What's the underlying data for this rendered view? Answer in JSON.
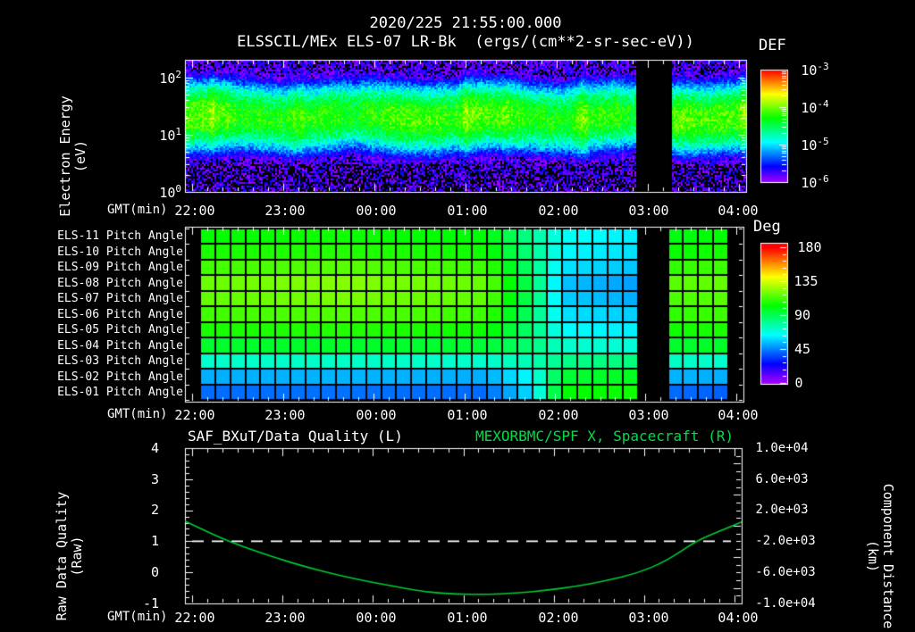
{
  "window": {
    "background": "#000000"
  },
  "title": {
    "line1": "2020/225 21:55:00.000",
    "line2": "ELSSCIL/MEx ELS-07 LR-Bk  (ergs/(cm**2-sr-sec-eV))"
  },
  "colors": {
    "text": "#ffffff",
    "title_right_green": "#00dd44",
    "curve_green": "#00cc33",
    "background": "#000000"
  },
  "axes_common": {
    "xlabel": "GMT(min)",
    "xticks": [
      "22:00",
      "23:00",
      "00:00",
      "01:00",
      "02:00",
      "03:00",
      "04:00"
    ]
  },
  "top_panel": {
    "ylabel_line1": "Electron Energy",
    "ylabel_line2": "(eV)",
    "yticks": [
      {
        "b": "10",
        "e": "2"
      },
      {
        "b": "10",
        "e": "1"
      },
      {
        "b": "10",
        "e": "0"
      }
    ],
    "colorbar": {
      "title": "DEF",
      "ticks": [
        {
          "b": "10",
          "e": "-3"
        },
        {
          "b": "10",
          "e": "-4"
        },
        {
          "b": "10",
          "e": "-5"
        },
        {
          "b": "10",
          "e": "-6"
        }
      ]
    }
  },
  "middle_panel": {
    "row_labels": [
      "ELS-11 Pitch Angle",
      "ELS-10 Pitch Angle",
      "ELS-09 Pitch Angle",
      "ELS-08 Pitch Angle",
      "ELS-07 Pitch Angle",
      "ELS-06 Pitch Angle",
      "ELS-05 Pitch Angle",
      "ELS-04 Pitch Angle",
      "ELS-03 Pitch Angle",
      "ELS-02 Pitch Angle",
      "ELS-01 Pitch Angle"
    ],
    "colorbar": {
      "title": "Deg",
      "ticks": [
        "180",
        "135",
        "90",
        "45",
        "0"
      ]
    }
  },
  "bottom_panel": {
    "title_left": "SAF_BXuT/Data Quality (L)",
    "title_right": "MEXORBMC/SPF X, Spacecraft (R)",
    "ylabel_left_line1": "Raw Data Quality",
    "ylabel_left_line2": "(Raw)",
    "yticks_left": [
      "4",
      "3",
      "2",
      "1",
      "0",
      "-1"
    ],
    "ylabel_right_line1": "Component Distance",
    "ylabel_right_line2": "(km)",
    "yticks_right": [
      "1.0e+04",
      "6.0e+03",
      "2.0e+03",
      "-2.0e+03",
      "-6.0e+03",
      "-1.0e+04"
    ]
  },
  "chart_data": [
    {
      "type": "heatmap",
      "id": "electron-energy-spectrogram",
      "title": "ELSSCIL/MEx ELS-07 LR-Bk",
      "units": "ergs/(cm**2-sr-sec-eV)",
      "x_axis": {
        "label": "GMT(min)",
        "start_gmt": "21:55",
        "end_gmt": "04:05",
        "span_minutes": 370,
        "tick_labels": [
          "22:00",
          "23:00",
          "00:00",
          "01:00",
          "02:00",
          "03:00",
          "04:00"
        ]
      },
      "y_axis": {
        "label": "Electron Energy (eV)",
        "scale": "log",
        "min_ev": 1,
        "max_ev": 200,
        "tick_labels": [
          "10^0",
          "10^1",
          "10^2"
        ]
      },
      "z_axis": {
        "label": "DEF",
        "scale": "log",
        "min": 1e-06,
        "max": 0.001,
        "tick_labels": [
          "10^-3",
          "10^-4",
          "10^-5",
          "10^-6"
        ]
      },
      "band": {
        "center_ev": 21,
        "center_log10_ev": 1.32,
        "peak_log10_def": -4.18,
        "green_band_ev": [
          8,
          45
        ],
        "background_log10_def": -5.85,
        "bright_streak_minutes": [
          17,
          184,
          262,
          368
        ]
      },
      "data_gap_minutes": [
        [
          297,
          320
        ]
      ]
    },
    {
      "type": "heatmap",
      "id": "pitch-angle-panels",
      "rows": [
        "ELS-11",
        "ELS-10",
        "ELS-09",
        "ELS-08",
        "ELS-07",
        "ELS-06",
        "ELS-05",
        "ELS-04",
        "ELS-03",
        "ELS-02",
        "ELS-01"
      ],
      "z_axis": {
        "label": "Deg",
        "min": 0,
        "max": 180,
        "tick_labels": [
          "180",
          "135",
          "90",
          "45",
          "0"
        ]
      },
      "column_bin_minutes": 10,
      "keyframe_minutes": [
        0,
        105,
        200,
        230,
        250,
        295,
        322,
        360
      ],
      "row_values_deg": [
        [
          103,
          105,
          102,
          80,
          66,
          62,
          100,
          103
        ],
        [
          106,
          108,
          105,
          82,
          64,
          60,
          104,
          106
        ],
        [
          112,
          116,
          112,
          85,
          60,
          56,
          110,
          112
        ],
        [
          118,
          123,
          118,
          88,
          55,
          50,
          116,
          118
        ],
        [
          117,
          121,
          117,
          88,
          57,
          52,
          114,
          116
        ],
        [
          112,
          115,
          112,
          86,
          60,
          57,
          110,
          112
        ],
        [
          106,
          108,
          105,
          85,
          64,
          62,
          105,
          107
        ],
        [
          96,
          97,
          95,
          85,
          72,
          70,
          96,
          97
        ],
        [
          72,
          73,
          72,
          76,
          82,
          84,
          73,
          72
        ],
        [
          52,
          53,
          52,
          65,
          95,
          98,
          53,
          52
        ],
        [
          42,
          43,
          42,
          60,
          102,
          105,
          42,
          40
        ]
      ],
      "data_gap_minutes": [
        [
          0,
          8
        ],
        [
          297,
          320
        ],
        [
          358,
          370
        ]
      ]
    },
    {
      "type": "line",
      "id": "quality-distance-plot",
      "x_axis": {
        "label": "GMT(min)",
        "start_gmt": "21:55",
        "end_gmt": "04:05",
        "span_minutes": 370
      },
      "y_left": {
        "label": "Raw Data Quality (Raw)",
        "min": -1,
        "max": 4,
        "ticks": [
          4,
          3,
          2,
          1,
          0,
          -1
        ]
      },
      "y_right": {
        "label": "Component Distance (km)",
        "min": -10000,
        "max": 10000,
        "ticks": [
          10000,
          6000,
          2000,
          -2000,
          -6000,
          -10000
        ],
        "km_from_raw": "km = raw*4000 - 6000"
      },
      "series": [
        {
          "name": "SAF_BXuT/Data Quality (L)",
          "style": "dashed-horizontal",
          "color": "#ffffff",
          "value_raw": 1.0
        },
        {
          "name": "MEXORBMC/SPF X, Spacecraft (R)",
          "style": "solid",
          "color": "#00cc33",
          "x_minutes": [
            0,
            20,
            40,
            60,
            80,
            100,
            120,
            140,
            160,
            180,
            200,
            220,
            240,
            260,
            280,
            300,
            320,
            340,
            355,
            370
          ],
          "y_raw": [
            1.65,
            1.18,
            0.8,
            0.47,
            0.18,
            -0.07,
            -0.28,
            -0.46,
            -0.63,
            -0.7,
            -0.71,
            -0.67,
            -0.58,
            -0.45,
            -0.27,
            -0.04,
            0.36,
            1.02,
            1.32,
            1.62
          ]
        }
      ]
    }
  ]
}
